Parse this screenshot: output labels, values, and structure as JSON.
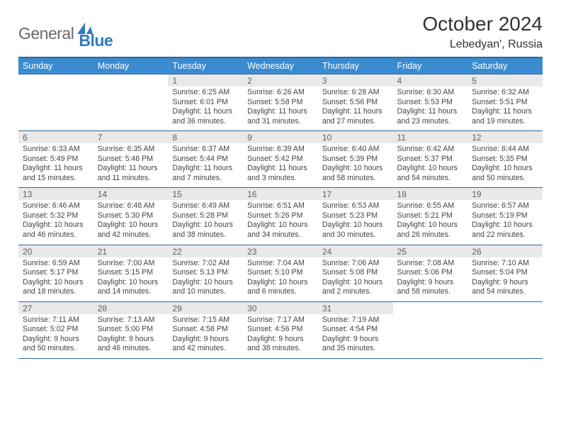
{
  "brand": {
    "general": "General",
    "blue": "Blue"
  },
  "title": "October 2024",
  "location": "Lebedyan', Russia",
  "colors": {
    "header_bg": "#3a8bd0",
    "header_border": "#2b6aa3",
    "daynum_bg": "#e9e9e9",
    "text": "#333333",
    "brand_gray": "#6a6a6a",
    "brand_blue": "#2e7bc0",
    "page_bg": "#ffffff"
  },
  "typography": {
    "title_fontsize": 28,
    "location_fontsize": 16,
    "dow_fontsize": 12.5,
    "daynum_fontsize": 12,
    "cell_fontsize": 10.6
  },
  "days_of_week": [
    "Sunday",
    "Monday",
    "Tuesday",
    "Wednesday",
    "Thursday",
    "Friday",
    "Saturday"
  ],
  "weeks": [
    {
      "nums": [
        "",
        "",
        "1",
        "2",
        "3",
        "4",
        "5"
      ],
      "cells": [
        null,
        null,
        {
          "sunrise": "Sunrise: 6:25 AM",
          "sunset": "Sunset: 6:01 PM",
          "daylight": "Daylight: 11 hours and 36 minutes."
        },
        {
          "sunrise": "Sunrise: 6:26 AM",
          "sunset": "Sunset: 5:58 PM",
          "daylight": "Daylight: 11 hours and 31 minutes."
        },
        {
          "sunrise": "Sunrise: 6:28 AM",
          "sunset": "Sunset: 5:56 PM",
          "daylight": "Daylight: 11 hours and 27 minutes."
        },
        {
          "sunrise": "Sunrise: 6:30 AM",
          "sunset": "Sunset: 5:53 PM",
          "daylight": "Daylight: 11 hours and 23 minutes."
        },
        {
          "sunrise": "Sunrise: 6:32 AM",
          "sunset": "Sunset: 5:51 PM",
          "daylight": "Daylight: 11 hours and 19 minutes."
        }
      ]
    },
    {
      "nums": [
        "6",
        "7",
        "8",
        "9",
        "10",
        "11",
        "12"
      ],
      "cells": [
        {
          "sunrise": "Sunrise: 6:33 AM",
          "sunset": "Sunset: 5:49 PM",
          "daylight": "Daylight: 11 hours and 15 minutes."
        },
        {
          "sunrise": "Sunrise: 6:35 AM",
          "sunset": "Sunset: 5:46 PM",
          "daylight": "Daylight: 11 hours and 11 minutes."
        },
        {
          "sunrise": "Sunrise: 6:37 AM",
          "sunset": "Sunset: 5:44 PM",
          "daylight": "Daylight: 11 hours and 7 minutes."
        },
        {
          "sunrise": "Sunrise: 6:39 AM",
          "sunset": "Sunset: 5:42 PM",
          "daylight": "Daylight: 11 hours and 3 minutes."
        },
        {
          "sunrise": "Sunrise: 6:40 AM",
          "sunset": "Sunset: 5:39 PM",
          "daylight": "Daylight: 10 hours and 58 minutes."
        },
        {
          "sunrise": "Sunrise: 6:42 AM",
          "sunset": "Sunset: 5:37 PM",
          "daylight": "Daylight: 10 hours and 54 minutes."
        },
        {
          "sunrise": "Sunrise: 6:44 AM",
          "sunset": "Sunset: 5:35 PM",
          "daylight": "Daylight: 10 hours and 50 minutes."
        }
      ]
    },
    {
      "nums": [
        "13",
        "14",
        "15",
        "16",
        "17",
        "18",
        "19"
      ],
      "cells": [
        {
          "sunrise": "Sunrise: 6:46 AM",
          "sunset": "Sunset: 5:32 PM",
          "daylight": "Daylight: 10 hours and 46 minutes."
        },
        {
          "sunrise": "Sunrise: 6:48 AM",
          "sunset": "Sunset: 5:30 PM",
          "daylight": "Daylight: 10 hours and 42 minutes."
        },
        {
          "sunrise": "Sunrise: 6:49 AM",
          "sunset": "Sunset: 5:28 PM",
          "daylight": "Daylight: 10 hours and 38 minutes."
        },
        {
          "sunrise": "Sunrise: 6:51 AM",
          "sunset": "Sunset: 5:26 PM",
          "daylight": "Daylight: 10 hours and 34 minutes."
        },
        {
          "sunrise": "Sunrise: 6:53 AM",
          "sunset": "Sunset: 5:23 PM",
          "daylight": "Daylight: 10 hours and 30 minutes."
        },
        {
          "sunrise": "Sunrise: 6:55 AM",
          "sunset": "Sunset: 5:21 PM",
          "daylight": "Daylight: 10 hours and 26 minutes."
        },
        {
          "sunrise": "Sunrise: 6:57 AM",
          "sunset": "Sunset: 5:19 PM",
          "daylight": "Daylight: 10 hours and 22 minutes."
        }
      ]
    },
    {
      "nums": [
        "20",
        "21",
        "22",
        "23",
        "24",
        "25",
        "26"
      ],
      "cells": [
        {
          "sunrise": "Sunrise: 6:59 AM",
          "sunset": "Sunset: 5:17 PM",
          "daylight": "Daylight: 10 hours and 18 minutes."
        },
        {
          "sunrise": "Sunrise: 7:00 AM",
          "sunset": "Sunset: 5:15 PM",
          "daylight": "Daylight: 10 hours and 14 minutes."
        },
        {
          "sunrise": "Sunrise: 7:02 AM",
          "sunset": "Sunset: 5:13 PM",
          "daylight": "Daylight: 10 hours and 10 minutes."
        },
        {
          "sunrise": "Sunrise: 7:04 AM",
          "sunset": "Sunset: 5:10 PM",
          "daylight": "Daylight: 10 hours and 6 minutes."
        },
        {
          "sunrise": "Sunrise: 7:06 AM",
          "sunset": "Sunset: 5:08 PM",
          "daylight": "Daylight: 10 hours and 2 minutes."
        },
        {
          "sunrise": "Sunrise: 7:08 AM",
          "sunset": "Sunset: 5:06 PM",
          "daylight": "Daylight: 9 hours and 58 minutes."
        },
        {
          "sunrise": "Sunrise: 7:10 AM",
          "sunset": "Sunset: 5:04 PM",
          "daylight": "Daylight: 9 hours and 54 minutes."
        }
      ]
    },
    {
      "nums": [
        "27",
        "28",
        "29",
        "30",
        "31",
        "",
        ""
      ],
      "cells": [
        {
          "sunrise": "Sunrise: 7:11 AM",
          "sunset": "Sunset: 5:02 PM",
          "daylight": "Daylight: 9 hours and 50 minutes."
        },
        {
          "sunrise": "Sunrise: 7:13 AM",
          "sunset": "Sunset: 5:00 PM",
          "daylight": "Daylight: 9 hours and 46 minutes."
        },
        {
          "sunrise": "Sunrise: 7:15 AM",
          "sunset": "Sunset: 4:58 PM",
          "daylight": "Daylight: 9 hours and 42 minutes."
        },
        {
          "sunrise": "Sunrise: 7:17 AM",
          "sunset": "Sunset: 4:56 PM",
          "daylight": "Daylight: 9 hours and 38 minutes."
        },
        {
          "sunrise": "Sunrise: 7:19 AM",
          "sunset": "Sunset: 4:54 PM",
          "daylight": "Daylight: 9 hours and 35 minutes."
        },
        null,
        null
      ]
    }
  ]
}
